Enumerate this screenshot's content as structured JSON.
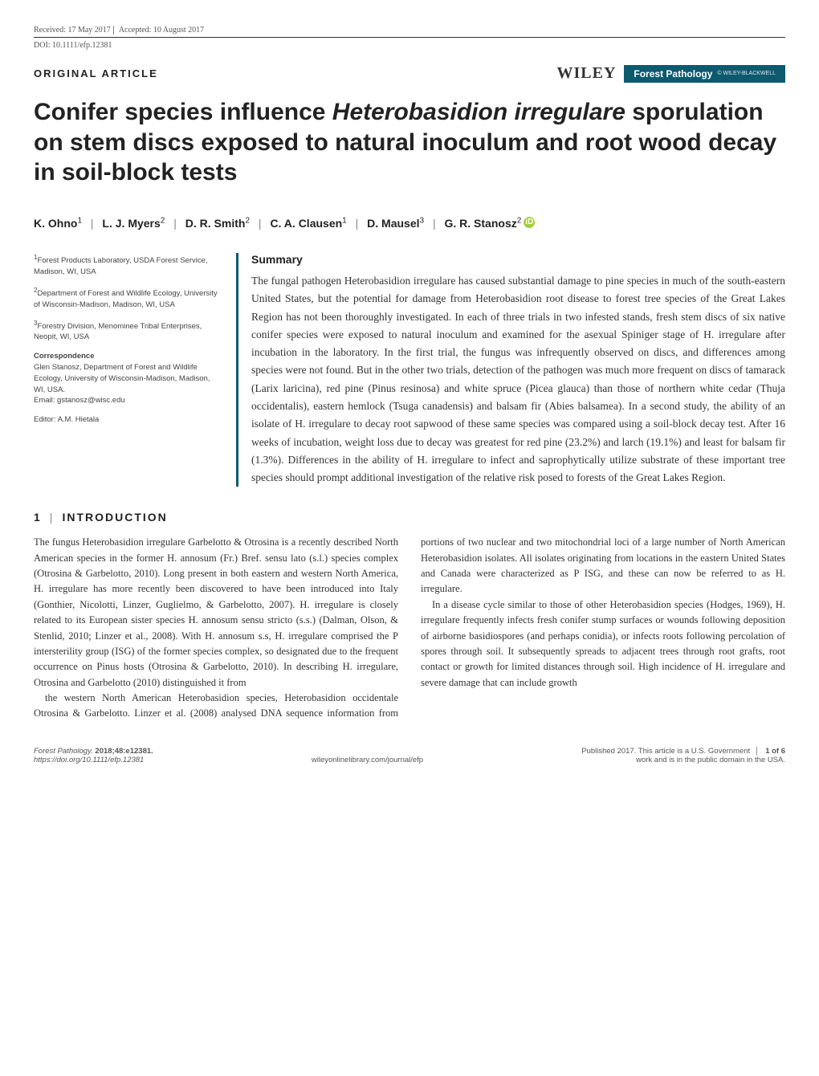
{
  "meta": {
    "received": "Received: 17 May 2017",
    "accepted": "Accepted: 10 August 2017",
    "doi": "DOI: 10.1111/efp.12381",
    "article_type": "ORIGINAL ARTICLE",
    "wiley": "WILEY",
    "journal": "Forest Pathology",
    "badge_sub": "© WILEY-BLACKWELL"
  },
  "title": "Conifer species influence Heterobasidion irregulare sporulation on stem discs exposed to natural inoculum and root wood decay in soil-block tests",
  "authors": {
    "a1": "K. Ohno",
    "a1s": "1",
    "a2": "L. J. Myers",
    "a2s": "2",
    "a3": "D. R. Smith",
    "a3s": "2",
    "a4": "C. A. Clausen",
    "a4s": "1",
    "a5": "D. Mausel",
    "a5s": "3",
    "a6": "G. R. Stanosz",
    "a6s": "2",
    "orcid": "iD"
  },
  "affiliations": {
    "aff1": "Forest Products Laboratory, USDA Forest Service, Madison, WI, USA",
    "aff2": "Department of Forest and Wildlife Ecology, University of Wisconsin-Madison, Madison, WI, USA",
    "aff3": "Forestry Division, Menominee Tribal Enterprises, Neopit, WI, USA",
    "corr_h": "Correspondence",
    "corr": "Glen Stanosz, Department of Forest and Wildlife Ecology, University of Wisconsin-Madison, Madison, WI, USA.",
    "email_label": "Email: gstanosz@wisc.edu",
    "editor": "Editor: A.M. Hietala"
  },
  "summary": {
    "heading": "Summary",
    "body": "The fungal pathogen Heterobasidion irregulare has caused substantial damage to pine species in much of the south-eastern United States, but the potential for damage from Heterobasidion root disease to forest tree species of the Great Lakes Region has not been thoroughly investigated. In each of three trials in two infested stands, fresh stem discs of six native conifer species were exposed to natural inoculum and examined for the asexual Spiniger stage of H. irregulare after incubation in the laboratory. In the first trial, the fungus was infrequently observed on discs, and differences among species were not found. But in the other two trials, detection of the pathogen was much more frequent on discs of tamarack (Larix laricina), red pine (Pinus resinosa) and white spruce (Picea glauca) than those of northern white cedar (Thuja occidentalis), eastern hemlock (Tsuga canadensis) and balsam fir (Abies balsamea). In a second study, the ability of an isolate of H. irregulare to decay root sapwood of these same species was compared using a soil-block decay test. After 16 weeks of incubation, weight loss due to decay was greatest for red pine (23.2%) and larch (19.1%) and least for balsam fir (1.3%). Differences in the ability of H. irregulare to infect and saprophytically utilize substrate of these important tree species should prompt additional investigation of the relative risk posed to forests of the Great Lakes Region."
  },
  "section": {
    "num": "1",
    "title": "INTRODUCTION",
    "p1": "The fungus Heterobasidion irregulare Garbelotto & Otrosina is a recently described North American species in the former H. annosum (Fr.) Bref. sensu lato (s.l.) species complex (Otrosina & Garbelotto, 2010). Long present in both eastern and western North America, H. irregulare has more recently been discovered to have been introduced into Italy (Gonthier, Nicolotti, Linzer, Guglielmo, & Garbelotto, 2007). H. irregulare is closely related to its European sister species H. annosum sensu stricto (s.s.) (Dalman, Olson, & Stenlid, 2010; Linzer et al., 2008). With H. annosum s.s, H. irregulare comprised the P intersterility group (ISG) of the former species complex, so designated due to the frequent occurrence on Pinus hosts (Otrosina & Garbelotto, 2010). In describing H. irregulare, Otrosina and Garbelotto (2010) distinguished it from",
    "p2": "the western North American Heterobasidion species, Heterobasidion occidentale Otrosina & Garbelotto. Linzer et al. (2008) analysed DNA sequence information from portions of two nuclear and two mitochondrial loci of a large number of North American Heterobasidion isolates. All isolates originating from locations in the eastern United States and Canada were characterized as P ISG, and these can now be referred to as H. irregulare.",
    "p3": "In a disease cycle similar to those of other Heterobasidion species (Hodges, 1969), H. irregulare frequently infects fresh conifer stump surfaces or wounds following deposition of airborne basidiospores (and perhaps conidia), or infects roots following percolation of spores through soil. It subsequently spreads to adjacent trees through root grafts, root contact or growth for limited distances through soil. High incidence of H. irregulare and severe damage that can include growth"
  },
  "footer": {
    "journal_it": "Forest Pathology.",
    "citation": " 2018;48:e12381.",
    "url": "https://doi.org/10.1111/efp.12381",
    "mid": "wileyonlinelibrary.com/journal/efp",
    "right1": "Published 2017. This article is a U.S. Government",
    "right2": "work and is in the public domain in the USA.",
    "page": "1 of 6"
  },
  "colors": {
    "accent": "#0d5a6e",
    "orcid": "#a6ce39",
    "text": "#333333",
    "muted": "#555555"
  }
}
